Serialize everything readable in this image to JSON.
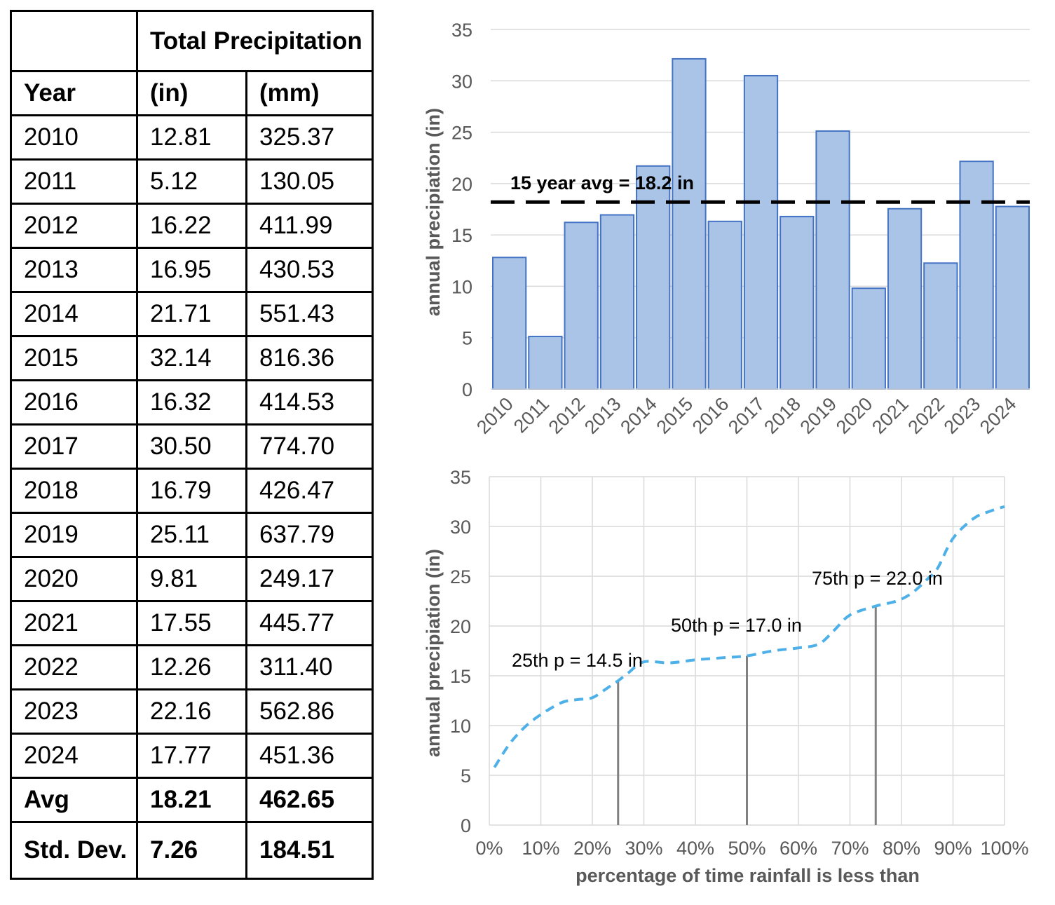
{
  "table": {
    "header": {
      "total_precipitation": "Total Precipitation",
      "year": "Year",
      "in": "(in)",
      "mm": "(mm)"
    },
    "rows": [
      {
        "year": "2010",
        "in": "12.81",
        "mm": "325.37"
      },
      {
        "year": "2011",
        "in": "5.12",
        "mm": "130.05"
      },
      {
        "year": "2012",
        "in": "16.22",
        "mm": "411.99"
      },
      {
        "year": "2013",
        "in": "16.95",
        "mm": "430.53"
      },
      {
        "year": "2014",
        "in": "21.71",
        "mm": "551.43"
      },
      {
        "year": "2015",
        "in": "32.14",
        "mm": "816.36"
      },
      {
        "year": "2016",
        "in": "16.32",
        "mm": "414.53"
      },
      {
        "year": "2017",
        "in": "30.50",
        "mm": "774.70"
      },
      {
        "year": "2018",
        "in": "16.79",
        "mm": "426.47"
      },
      {
        "year": "2019",
        "in": "25.11",
        "mm": "637.79"
      },
      {
        "year": "2020",
        "in": "9.81",
        "mm": "249.17"
      },
      {
        "year": "2021",
        "in": "17.55",
        "mm": "445.77"
      },
      {
        "year": "2022",
        "in": "12.26",
        "mm": "311.40"
      },
      {
        "year": "2023",
        "in": "22.16",
        "mm": "562.86"
      },
      {
        "year": "2024",
        "in": "17.77",
        "mm": "451.36"
      }
    ],
    "avg": {
      "label": "Avg",
      "in": "18.21",
      "mm": "462.65"
    },
    "std": {
      "label": "Std. Dev.",
      "in": "7.26",
      "mm": "184.51"
    }
  },
  "chart_data": [
    {
      "type": "bar",
      "categories": [
        "2010",
        "2011",
        "2012",
        "2013",
        "2014",
        "2015",
        "2016",
        "2017",
        "2018",
        "2019",
        "2020",
        "2021",
        "2022",
        "2023",
        "2024"
      ],
      "values": [
        12.81,
        5.12,
        16.22,
        16.95,
        21.71,
        32.14,
        16.32,
        30.5,
        16.79,
        25.11,
        9.81,
        17.55,
        12.26,
        22.16,
        17.77
      ],
      "ylabel": "annual precipiation (in)",
      "ylim": [
        0,
        35
      ],
      "yticks": [
        0,
        5,
        10,
        15,
        20,
        25,
        30,
        35
      ],
      "grid": true,
      "bar_color": "#a9c4e6",
      "bar_edge_color": "#4472c4",
      "reference_line": {
        "value": 18.2,
        "label": "15 year avg = 18.2 in",
        "style": "dashed",
        "color": "#000000"
      }
    },
    {
      "type": "line",
      "xlabel": "percentage of time rainfall is less than",
      "ylabel": "annual precipiation (in)",
      "xlim": [
        0,
        100
      ],
      "ylim": [
        0,
        35
      ],
      "xticks": [
        "0%",
        "10%",
        "20%",
        "30%",
        "40%",
        "50%",
        "60%",
        "70%",
        "80%",
        "90%",
        "100%"
      ],
      "yticks": [
        0,
        5,
        10,
        15,
        20,
        25,
        30,
        35
      ],
      "grid": true,
      "line_color": "#4eb0e8",
      "line_style": "dashed",
      "x": [
        1,
        4,
        7,
        10,
        14,
        17,
        20,
        23,
        25,
        27,
        30,
        35,
        40,
        45,
        50,
        55,
        60,
        64,
        67,
        70,
        75,
        79,
        82,
        85,
        87,
        90,
        94,
        97,
        100
      ],
      "y": [
        5.8,
        8.2,
        9.9,
        11.1,
        12.3,
        12.6,
        12.8,
        13.8,
        14.5,
        15.3,
        16.4,
        16.3,
        16.6,
        16.8,
        17.0,
        17.5,
        17.8,
        18.2,
        19.6,
        21.1,
        22.0,
        22.5,
        23.3,
        24.7,
        25.8,
        28.8,
        30.8,
        31.5,
        32.0
      ],
      "markers": [
        {
          "x": 25,
          "value": 14.5,
          "label": "25th p = 14.5 in"
        },
        {
          "x": 50,
          "value": 17.0,
          "label": "50th p = 17.0 in"
        },
        {
          "x": 75,
          "value": 22.0,
          "label": "75th p = 22.0 in"
        }
      ],
      "marker_line_color": "#808080"
    }
  ]
}
